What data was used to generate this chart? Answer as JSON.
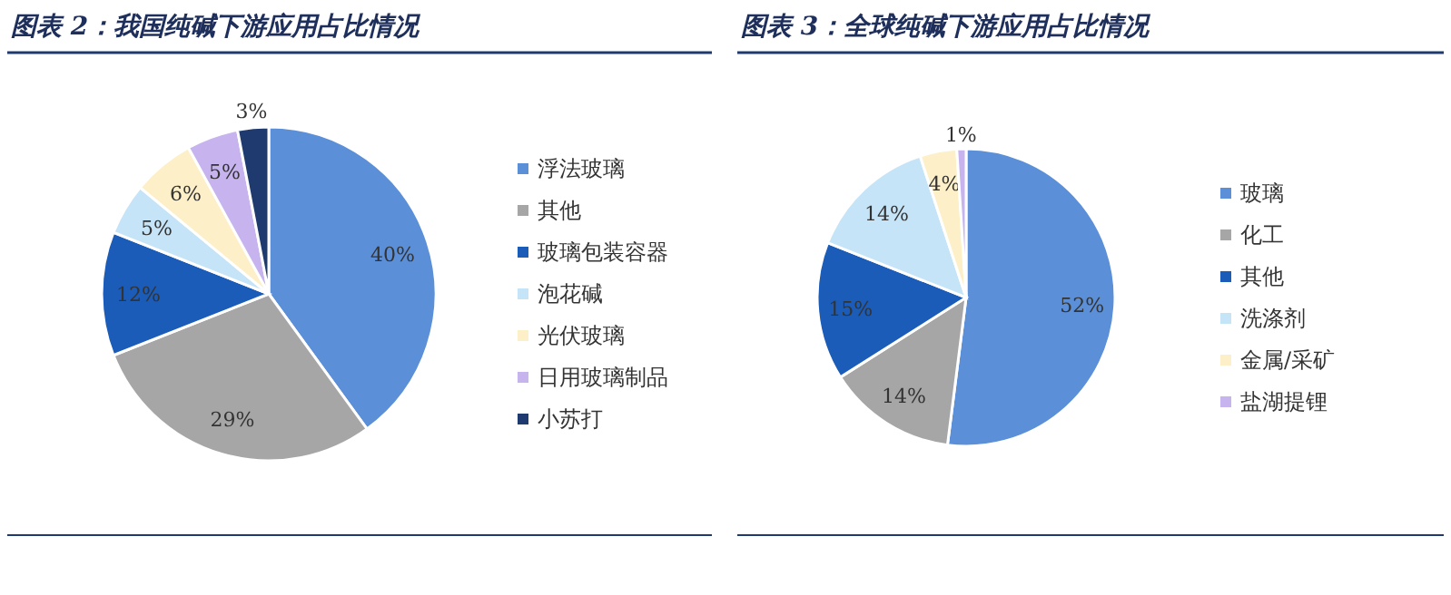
{
  "chart_data": [
    {
      "type": "pie",
      "title": "图表 2：我国纯碱下游应用占比情况",
      "categories": [
        "浮法玻璃",
        "其他",
        "玻璃包装容器",
        "泡花碱",
        "光伏玻璃",
        "日用玻璃制品",
        "小苏打"
      ],
      "values": [
        40,
        29,
        12,
        5,
        6,
        5,
        3
      ],
      "value_labels": [
        "40%",
        "29%",
        "12%",
        "5%",
        "6%",
        "5%",
        "3%"
      ],
      "colors": [
        "#5b8fd8",
        "#a6a6a6",
        "#1a5cb8",
        "#c6e4f7",
        "#fdf0c8",
        "#c7b4ef",
        "#1f3a6e"
      ],
      "legend": "right"
    },
    {
      "type": "pie",
      "title": "图表 3：全球纯碱下游应用占比情况",
      "categories": [
        "玻璃",
        "化工",
        "其他",
        "洗涤剂",
        "金属/采矿",
        "盐湖提锂"
      ],
      "values": [
        52,
        14,
        15,
        14,
        4,
        1
      ],
      "value_labels": [
        "52%",
        "14%",
        "15%",
        "14%",
        "4%",
        "1%"
      ],
      "colors": [
        "#5b8fd8",
        "#a6a6a6",
        "#1a5cb8",
        "#c6e4f7",
        "#fdf0c8",
        "#c7b4ef"
      ],
      "legend": "right"
    }
  ]
}
